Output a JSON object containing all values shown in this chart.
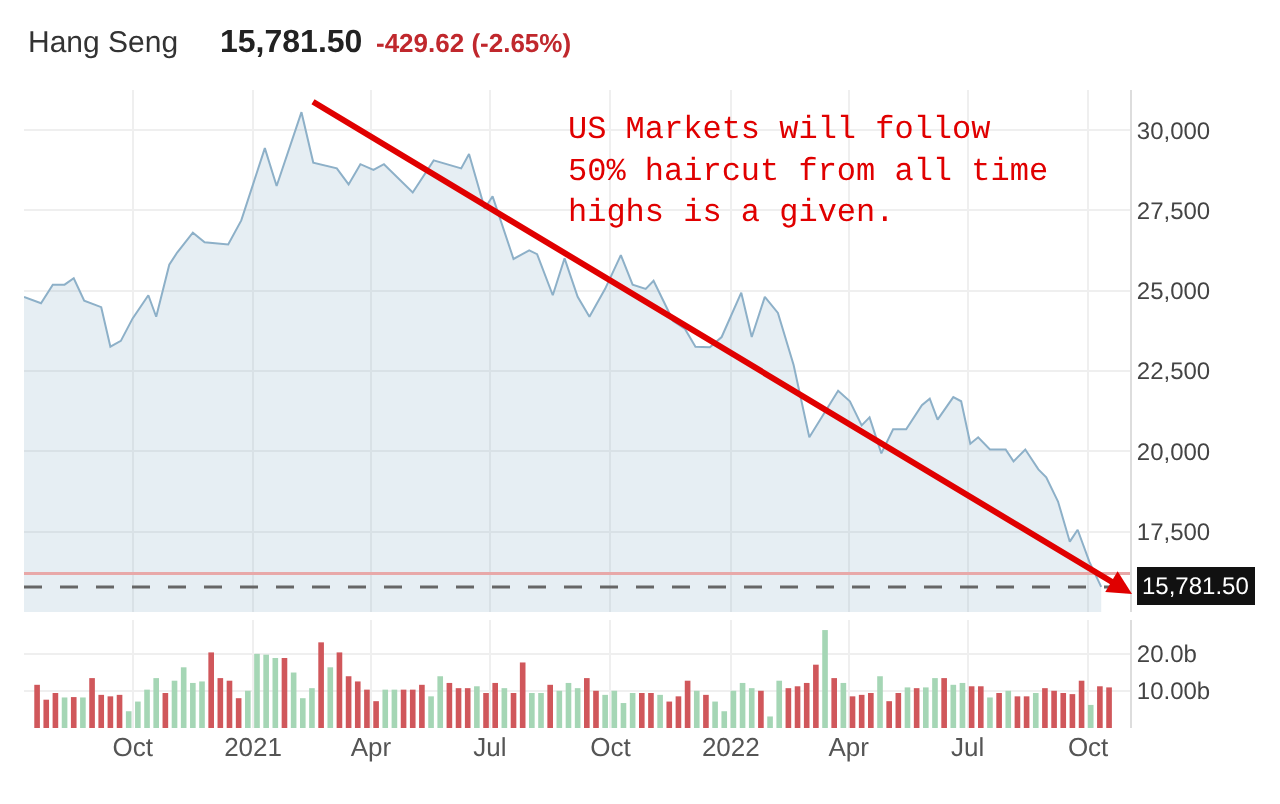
{
  "chart_data": [
    {
      "type": "area",
      "title": "Hang Seng",
      "annotations": [
        "15,781.50",
        "-429.62 (-2.65%)",
        "US Markets will follow\n50% haircut from all time\nhighs is a given."
      ],
      "x": [
        "2020-07-10",
        "2020-07-23",
        "2020-08-01",
        "2020-08-10",
        "2020-08-17",
        "2020-08-25",
        "2020-09-07",
        "2020-09-14",
        "2020-09-22",
        "2020-10-01",
        "2020-10-13",
        "2020-10-19",
        "2020-10-29",
        "2020-11-04",
        "2020-11-16",
        "2020-11-25",
        "2020-12-13",
        "2020-12-23",
        "2021-01-10",
        "2021-01-19",
        "2021-02-07",
        "2021-02-16",
        "2021-03-06",
        "2021-03-15",
        "2021-03-24",
        "2021-04-03",
        "2021-04-11",
        "2021-05-03",
        "2021-05-19",
        "2021-06-09",
        "2021-06-15",
        "2021-06-27",
        "2021-07-03",
        "2021-07-19",
        "2021-07-31",
        "2021-08-06",
        "2021-08-18",
        "2021-08-27",
        "2021-09-06",
        "2021-09-15",
        "2021-09-27",
        "2021-10-09",
        "2021-10-18",
        "2021-10-28",
        "2021-11-03",
        "2021-11-18",
        "2021-11-27",
        "2021-12-05",
        "2021-12-16",
        "2021-12-25",
        "2022-01-09",
        "2022-01-17",
        "2022-01-27",
        "2022-02-06",
        "2022-02-18",
        "2022-03-02",
        "2022-03-24",
        "2022-04-02",
        "2022-04-11",
        "2022-04-17",
        "2022-04-26",
        "2022-05-05",
        "2022-05-15",
        "2022-05-27",
        "2022-06-02",
        "2022-06-08",
        "2022-06-20",
        "2022-06-26",
        "2022-07-03",
        "2022-07-09",
        "2022-07-18",
        "2022-07-30",
        "2022-08-05",
        "2022-08-14",
        "2022-08-24",
        "2022-08-30",
        "2022-09-08",
        "2022-09-17",
        "2022-09-23",
        "2022-10-02",
        "2022-10-11"
      ],
      "series": [
        {
          "color": "#8db0c8",
          "values": [
            24810,
            24610,
            25190,
            25190,
            25390,
            24690,
            24490,
            23260,
            23440,
            24140,
            24860,
            24190,
            25810,
            26190,
            26810,
            26510,
            26440,
            27190,
            29440,
            28260,
            30560,
            28990,
            28810,
            28310,
            28940,
            28760,
            28940,
            28060,
            29060,
            28810,
            29260,
            27560,
            27940,
            25990,
            26260,
            26140,
            24860,
            26010,
            24810,
            24190,
            25060,
            26110,
            25190,
            25060,
            25310,
            24060,
            23810,
            23260,
            23240,
            23560,
            24940,
            23560,
            24810,
            24310,
            22690,
            20440,
            21890,
            21560,
            20810,
            21060,
            19940,
            20690,
            20690,
            21440,
            21640,
            20990,
            21690,
            21560,
            20240,
            20440,
            20060,
            20060,
            19690,
            20060,
            19440,
            19190,
            18440,
            17190,
            17560,
            16560,
            15780
          ]
        }
      ],
      "xlim": [
        "2020-07-10",
        "2022-11-02"
      ],
      "xticks": [
        {
          "value": "2020-10-01",
          "label": null
        },
        {
          "value": "2021-01-01",
          "label": null
        },
        {
          "value": "2021-04-01",
          "label": null
        },
        {
          "value": "2021-07-01",
          "label": null
        },
        {
          "value": "2021-10-01",
          "label": null
        },
        {
          "value": "2022-01-01",
          "label": null
        },
        {
          "value": "2022-04-01",
          "label": null
        },
        {
          "value": "2022-07-01",
          "label": null
        },
        {
          "value": "2022-10-01",
          "label": null
        }
      ],
      "ylim": [
        15000,
        31250
      ],
      "yticks": [
        {
          "value": 17500,
          "label": "17,500"
        },
        {
          "value": 20000,
          "label": "20,000"
        },
        {
          "value": 22500,
          "label": "22,500"
        },
        {
          "value": 25000,
          "label": "25,000"
        },
        {
          "value": 27500,
          "label": "27,500"
        },
        {
          "value": 30000,
          "label": "30,000"
        }
      ],
      "ref_lines": [
        {
          "axis": "y",
          "value": 16200,
          "color": "#e8a8a8",
          "line_style": "solid"
        },
        {
          "axis": "y",
          "value": 15781.5,
          "label": "15,781.50",
          "color": "#666666",
          "line_style": "dashed"
        }
      ],
      "grid": true,
      "tick_labels": "y"
    },
    {
      "type": "bar",
      "x": [
        "2020-07-20",
        "2020-07-27",
        "2020-08-03",
        "2020-08-10",
        "2020-08-17",
        "2020-08-24",
        "2020-08-31",
        "2020-09-07",
        "2020-09-14",
        "2020-09-21",
        "2020-09-28",
        "2020-10-05",
        "2020-10-12",
        "2020-10-19",
        "2020-10-26",
        "2020-11-02",
        "2020-11-09",
        "2020-11-16",
        "2020-11-23",
        "2020-11-30",
        "2020-12-07",
        "2020-12-14",
        "2020-12-21",
        "2020-12-28",
        "2021-01-04",
        "2021-01-11",
        "2021-01-18",
        "2021-01-25",
        "2021-02-01",
        "2021-02-08",
        "2021-02-15",
        "2021-02-22",
        "2021-03-01",
        "2021-03-08",
        "2021-03-15",
        "2021-03-22",
        "2021-03-29",
        "2021-04-05",
        "2021-04-12",
        "2021-04-19",
        "2021-04-26",
        "2021-05-03",
        "2021-05-10",
        "2021-05-17",
        "2021-05-24",
        "2021-05-31",
        "2021-06-07",
        "2021-06-14",
        "2021-06-21",
        "2021-06-28",
        "2021-07-05",
        "2021-07-12",
        "2021-07-19",
        "2021-07-26",
        "2021-08-02",
        "2021-08-09",
        "2021-08-16",
        "2021-08-23",
        "2021-08-30",
        "2021-09-06",
        "2021-09-13",
        "2021-09-20",
        "2021-09-27",
        "2021-10-04",
        "2021-10-11",
        "2021-10-18",
        "2021-10-25",
        "2021-11-01",
        "2021-11-08",
        "2021-11-15",
        "2021-11-22",
        "2021-11-29",
        "2021-12-06",
        "2021-12-13",
        "2021-12-20",
        "2021-12-27",
        "2022-01-03",
        "2022-01-10",
        "2022-01-17",
        "2022-01-24",
        "2022-01-31",
        "2022-02-07",
        "2022-02-14",
        "2022-02-21",
        "2022-02-28",
        "2022-03-07",
        "2022-03-14",
        "2022-03-21",
        "2022-03-28",
        "2022-04-04",
        "2022-04-11",
        "2022-04-18",
        "2022-04-25",
        "2022-05-02",
        "2022-05-09",
        "2022-05-16",
        "2022-05-23",
        "2022-05-30",
        "2022-06-06",
        "2022-06-13",
        "2022-06-20",
        "2022-06-27",
        "2022-07-04",
        "2022-07-11",
        "2022-07-18",
        "2022-07-25",
        "2022-08-01",
        "2022-08-08",
        "2022-08-15",
        "2022-08-22",
        "2022-08-29",
        "2022-09-05",
        "2022-09-12",
        "2022-09-19",
        "2022-09-26",
        "2022-10-03",
        "2022-10-10",
        "2022-10-17"
      ],
      "series": [
        {
          "values": [
            11.6,
            7.6,
            9.4,
            8.2,
            8.3,
            8.2,
            13.4,
            8.9,
            8.5,
            8.9,
            4.5,
            7.1,
            10.3,
            13.4,
            9.4,
            12.7,
            16.3,
            12.1,
            12.5,
            20.3,
            13.4,
            12.7,
            8.0,
            10.0,
            19.9,
            19.7,
            18.8,
            18.8,
            14.9,
            8.0,
            10.7,
            23.0,
            16.3,
            20.3,
            13.9,
            12.5,
            10.3,
            7.2,
            10.3,
            10.3,
            10.3,
            10.3,
            11.6,
            8.5,
            13.9,
            12.1,
            10.7,
            10.7,
            11.2,
            9.4,
            12.1,
            10.7,
            9.4,
            17.6,
            9.4,
            9.4,
            11.6,
            10.0,
            12.1,
            10.7,
            13.4,
            10.0,
            8.9,
            10.0,
            6.7,
            9.4,
            9.4,
            9.4,
            8.9,
            7.1,
            8.5,
            12.7,
            10.0,
            8.9,
            7.1,
            4.5,
            10.0,
            12.1,
            10.7,
            10.0,
            3.1,
            12.7,
            10.7,
            11.2,
            12.1,
            17.0,
            26.3,
            13.4,
            12.1,
            8.5,
            8.9,
            9.4,
            13.9,
            7.2,
            9.4,
            10.9,
            10.7,
            10.9,
            13.4,
            13.4,
            11.6,
            12.1,
            11.2,
            11.2,
            8.2,
            9.4,
            10.0,
            8.5,
            8.5,
            9.4,
            10.7,
            10.0,
            9.4,
            9.1,
            12.7,
            6.2,
            11.2,
            10.9
          ],
          "colors": [
            "#d0575b",
            "#d0575b",
            "#d0575b",
            "#a5d6b5",
            "#d0575b",
            "#a5d6b5",
            "#d0575b",
            "#d0575b",
            "#d0575b",
            "#d0575b",
            "#a5d6b5",
            "#a5d6b5",
            "#a5d6b5",
            "#a5d6b5",
            "#d0575b",
            "#a5d6b5",
            "#a5d6b5",
            "#a5d6b5",
            "#a5d6b5",
            "#d0575b",
            "#d0575b",
            "#d0575b",
            "#d0575b",
            "#a5d6b5",
            "#a5d6b5",
            "#a5d6b5",
            "#a5d6b5",
            "#d0575b",
            "#a5d6b5",
            "#a5d6b5",
            "#a5d6b5",
            "#d0575b",
            "#a5d6b5",
            "#d0575b",
            "#d0575b",
            "#d0575b",
            "#d0575b",
            "#d0575b",
            "#a5d6b5",
            "#a5d6b5",
            "#d0575b",
            "#d0575b",
            "#d0575b",
            "#a5d6b5",
            "#a5d6b5",
            "#d0575b",
            "#d0575b",
            "#d0575b",
            "#a5d6b5",
            "#d0575b",
            "#d0575b",
            "#a5d6b5",
            "#d0575b",
            "#d0575b",
            "#a5d6b5",
            "#a5d6b5",
            "#d0575b",
            "#a5d6b5",
            "#a5d6b5",
            "#a5d6b5",
            "#d0575b",
            "#d0575b",
            "#a5d6b5",
            "#a5d6b5",
            "#a5d6b5",
            "#a5d6b5",
            "#d0575b",
            "#d0575b",
            "#a5d6b5",
            "#d0575b",
            "#d0575b",
            "#d0575b",
            "#a5d6b5",
            "#d0575b",
            "#a5d6b5",
            "#a5d6b5",
            "#a5d6b5",
            "#a5d6b5",
            "#a5d6b5",
            "#d0575b",
            "#a5d6b5",
            "#a5d6b5",
            "#d0575b",
            "#d0575b",
            "#d0575b",
            "#d0575b",
            "#a5d6b5",
            "#d0575b",
            "#a5d6b5",
            "#d0575b",
            "#d0575b",
            "#d0575b",
            "#a5d6b5",
            "#d0575b",
            "#d0575b",
            "#a5d6b5",
            "#d0575b",
            "#a5d6b5",
            "#a5d6b5",
            "#d0575b",
            "#a5d6b5",
            "#a5d6b5",
            "#d0575b",
            "#d0575b",
            "#a5d6b5",
            "#d0575b",
            "#a5d6b5",
            "#d0575b",
            "#d0575b",
            "#a5d6b5",
            "#d0575b",
            "#d0575b",
            "#d0575b",
            "#d0575b",
            "#d0575b",
            "#a5d6b5",
            "#d0575b",
            "#d0575b"
          ]
        }
      ],
      "xlim": [
        "2020-07-10",
        "2022-11-02"
      ],
      "xticks": [
        {
          "value": "2020-10-01",
          "label": "Oct"
        },
        {
          "value": "2021-01-01",
          "label": "2021"
        },
        {
          "value": "2021-04-01",
          "label": "Apr"
        },
        {
          "value": "2021-07-01",
          "label": "Jul"
        },
        {
          "value": "2021-10-01",
          "label": "Oct"
        },
        {
          "value": "2022-01-01",
          "label": "2022"
        },
        {
          "value": "2022-04-01",
          "label": "Apr"
        },
        {
          "value": "2022-07-01",
          "label": "Jul"
        },
        {
          "value": "2022-10-01",
          "label": "Oct"
        }
      ],
      "ylim": [
        0,
        29
      ],
      "yticks": [
        {
          "value": 10,
          "label": "10.00b"
        },
        {
          "value": 20,
          "label": "20.0b"
        }
      ],
      "grid": true
    }
  ]
}
